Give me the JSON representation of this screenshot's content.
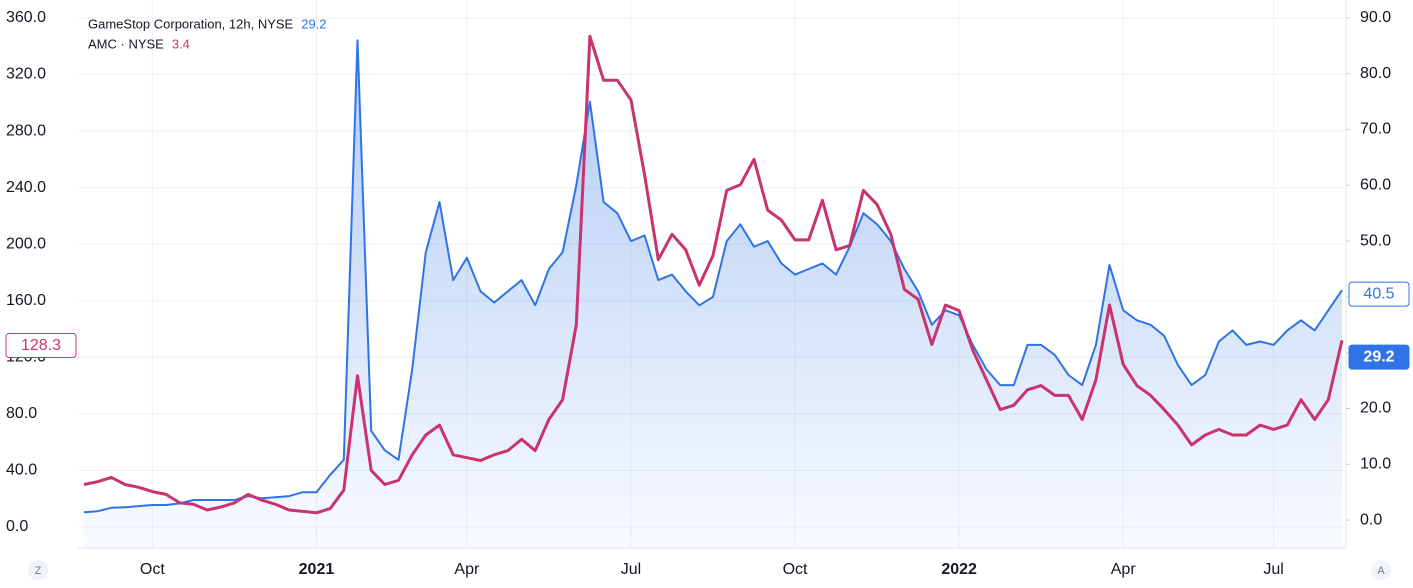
{
  "chart_data": {
    "type": "line",
    "categories": [
      null,
      null,
      null,
      null,
      null,
      "Oct",
      null,
      null,
      null,
      null,
      null,
      null,
      null,
      null,
      null,
      null,
      null,
      "2021",
      null,
      null,
      null,
      null,
      null,
      null,
      null,
      null,
      null,
      null,
      "Apr",
      null,
      null,
      null,
      null,
      null,
      null,
      null,
      null,
      null,
      null,
      null,
      "Jul",
      null,
      null,
      null,
      null,
      null,
      null,
      null,
      null,
      null,
      null,
      null,
      "Oct",
      null,
      null,
      null,
      null,
      null,
      null,
      null,
      null,
      null,
      null,
      null,
      "2022",
      null,
      null,
      null,
      null,
      null,
      null,
      null,
      null,
      null,
      null,
      null,
      "Apr",
      null,
      null,
      null,
      null,
      null,
      null,
      null,
      null,
      null,
      null,
      "Jul",
      null,
      null,
      null,
      null,
      null
    ],
    "series": [
      {
        "name": "GameStop Corporation, 12h, NYSE",
        "legend_value": 29.2,
        "color": "#2f74e6",
        "axis": "y2",
        "area": true,
        "values": [
          1.4,
          1.6,
          2.2,
          2.3,
          2.5,
          2.7,
          2.7,
          3.0,
          3.6,
          3.6,
          3.6,
          3.6,
          4.3,
          3.9,
          4.1,
          4.3,
          5.0,
          5.0,
          8.1,
          10.8,
          86,
          16,
          12.5,
          10.8,
          27,
          48,
          57,
          43,
          47,
          41,
          39,
          41,
          43,
          38.5,
          45,
          48,
          60,
          75,
          57,
          55,
          50,
          51,
          43,
          44,
          41,
          38.5,
          40,
          50,
          53,
          49,
          50,
          46,
          44,
          45,
          46,
          44,
          49,
          55,
          53,
          50,
          45,
          41,
          35,
          37.6,
          36.7,
          31.4,
          27,
          24.2,
          24.2,
          31.4,
          31.4,
          29.6,
          26,
          24.2,
          31.4,
          45.7,
          37.6,
          35.8,
          35,
          33,
          27.8,
          24.2,
          26,
          32,
          34,
          31.4,
          32,
          31.4,
          34,
          35.8,
          34,
          37.6,
          41.2
        ]
      },
      {
        "name": "AMC · NYSE",
        "legend_value": 3.4,
        "color": "#c9336f",
        "axis": "y",
        "values": [
          30,
          32,
          35,
          30,
          28,
          25,
          23,
          17,
          16,
          12,
          14,
          17,
          23,
          19,
          16,
          12,
          11,
          10,
          13,
          26,
          107,
          40,
          30,
          33,
          51,
          65,
          72,
          51,
          49,
          47,
          51,
          54,
          62,
          54,
          76,
          90,
          143,
          347,
          316,
          316,
          302,
          249,
          189,
          207,
          196,
          171,
          192,
          238,
          242,
          260,
          224,
          217,
          203,
          203,
          231,
          196,
          199,
          238,
          228,
          207,
          168,
          161,
          129,
          157,
          153,
          125,
          104,
          83,
          86,
          97,
          100,
          93,
          93,
          76,
          104,
          157,
          115,
          100,
          93,
          83,
          72,
          58,
          65,
          69,
          65,
          65,
          72,
          69,
          72,
          90,
          76,
          90,
          132
        ]
      }
    ],
    "ylim": [
      -14.9,
      372.7
    ],
    "yticks": [
      {
        "value": 0,
        "label": "0.0"
      },
      {
        "value": 40,
        "label": "40.0"
      },
      {
        "value": 80,
        "label": "80.0"
      },
      {
        "value": 120,
        "label": "120.0"
      },
      {
        "value": 160,
        "label": "160.0"
      },
      {
        "value": 200,
        "label": "200.0"
      },
      {
        "value": 240,
        "label": "240.0"
      },
      {
        "value": 280,
        "label": "280.0"
      },
      {
        "value": 320,
        "label": "320.0"
      },
      {
        "value": 360,
        "label": "360.0"
      }
    ],
    "y2lim": [
      -5.0,
      93.2
    ],
    "y2ticks": [
      {
        "value": 0,
        "label": "0.0"
      },
      {
        "value": 10,
        "label": "10.0"
      },
      {
        "value": 20,
        "label": "20.0"
      },
      {
        "value": 30,
        "label": "30.0"
      },
      {
        "value": 40,
        "label": "40.0"
      },
      {
        "value": 50,
        "label": "50.0"
      },
      {
        "value": 60,
        "label": "60.0"
      },
      {
        "value": 70,
        "label": "70.0"
      },
      {
        "value": 80,
        "label": "80.0"
      },
      {
        "value": 90,
        "label": "90.0"
      }
    ],
    "grid": true,
    "price_labels": [
      {
        "value": 40.5,
        "axis": "y2",
        "style": "outline",
        "color": "#2f74e6"
      },
      {
        "value": 29.2,
        "axis": "y2",
        "style": "filled",
        "color": "#2f74e6"
      },
      {
        "value": 128.3,
        "axis": "y",
        "style": "outline",
        "color": "#c9336f"
      }
    ],
    "scale_buttons": [
      "Z",
      "A"
    ]
  }
}
